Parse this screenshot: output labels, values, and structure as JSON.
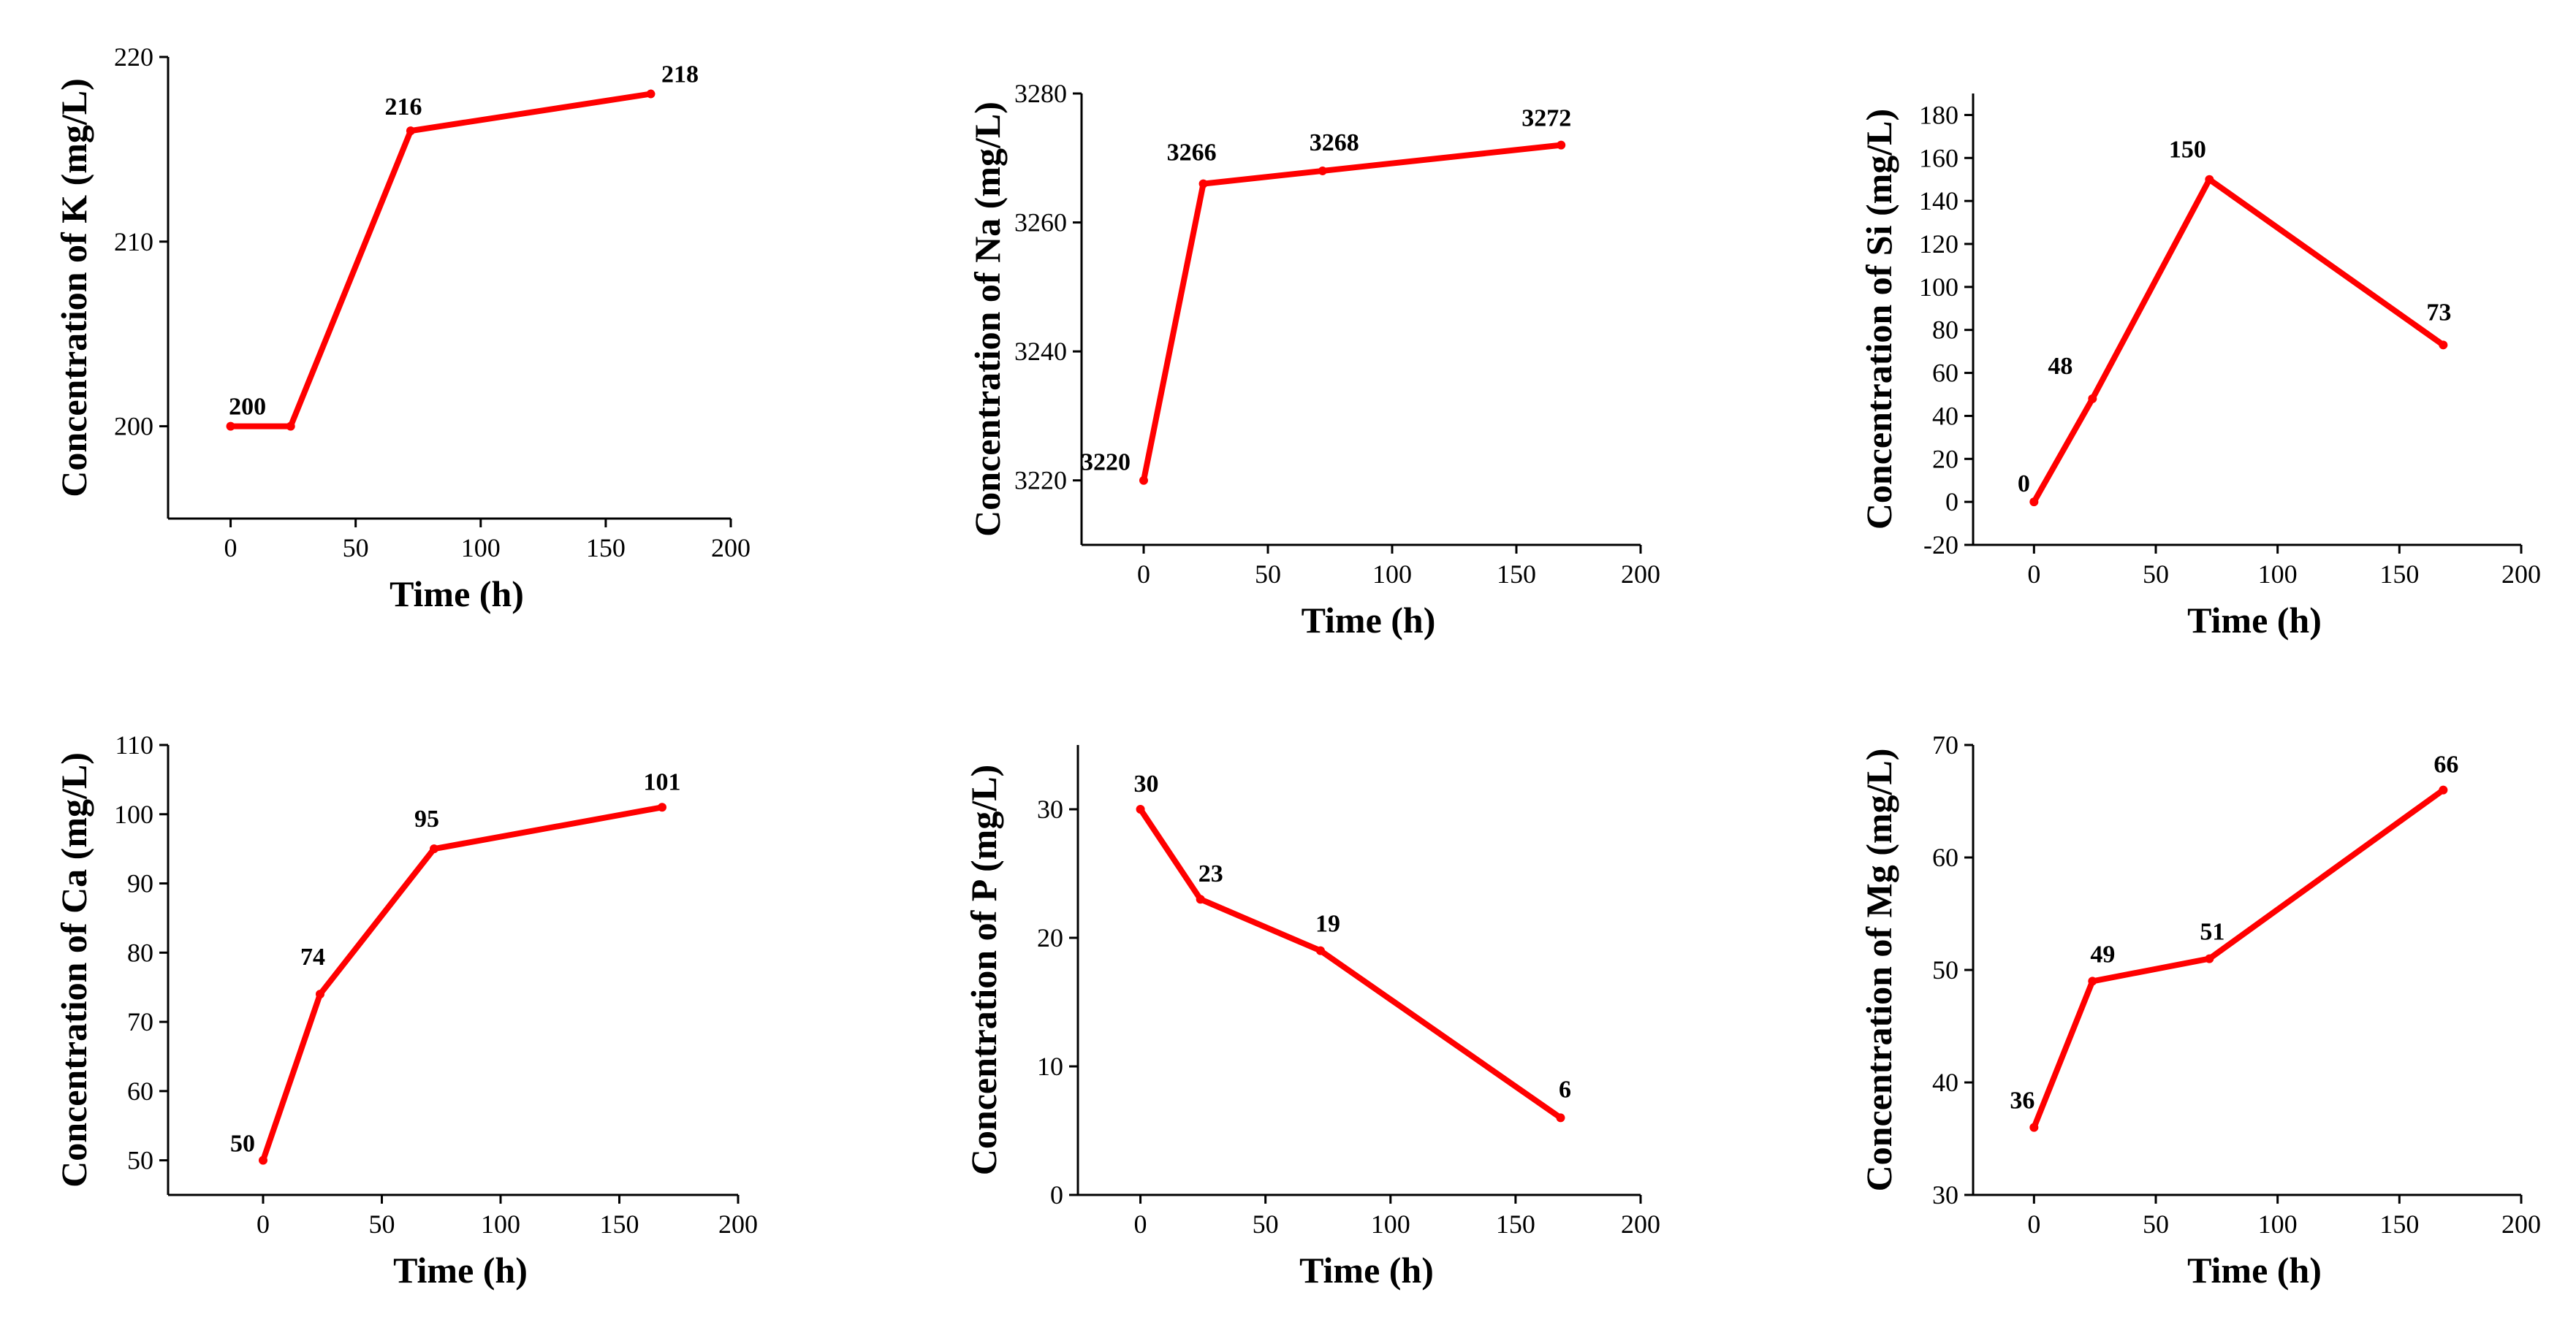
{
  "chart_data": [
    {
      "type": "line",
      "title": "",
      "xlabel": "Time (h)",
      "ylabel": "Concentration of K (mg/L)",
      "xlim": [
        -25,
        200
      ],
      "ylim": [
        195,
        220
      ],
      "xticks": [
        0,
        50,
        100,
        150,
        200
      ],
      "yticks": [
        200,
        210,
        220
      ],
      "series": [
        {
          "name": "K",
          "color": "#ff0000",
          "x": [
            0,
            24,
            72,
            168
          ],
          "values": [
            200,
            200,
            216,
            218
          ]
        }
      ],
      "annotations": [
        {
          "text": "200",
          "x": 12,
          "y": 200
        },
        {
          "text": "216",
          "x": 72,
          "y": 216
        },
        {
          "text": "218",
          "x": 168,
          "y": 218
        }
      ]
    },
    {
      "type": "line",
      "title": "",
      "xlabel": "Time (h)",
      "ylabel": "Concentration of Na (mg/L)",
      "xlim": [
        -25,
        200
      ],
      "ylim": [
        3210,
        3280
      ],
      "xticks": [
        0,
        50,
        100,
        150,
        200
      ],
      "yticks": [
        3220,
        3240,
        3260,
        3280
      ],
      "series": [
        {
          "name": "Na",
          "color": "#ff0000",
          "x": [
            0,
            24,
            72,
            168
          ],
          "values": [
            3220,
            3266,
            3268,
            3272
          ]
        }
      ],
      "annotations": [
        {
          "text": "3220",
          "x": 0,
          "y": 3220
        },
        {
          "text": "3266",
          "x": 24,
          "y": 3266
        },
        {
          "text": "3268",
          "x": 72,
          "y": 3268
        },
        {
          "text": "3272",
          "x": 168,
          "y": 3272
        }
      ]
    },
    {
      "type": "line",
      "title": "",
      "xlabel": "Time (h)",
      "ylabel": "Concentration of Si (mg/L)",
      "xlim": [
        -25,
        200
      ],
      "ylim": [
        -20,
        190
      ],
      "xticks": [
        0,
        50,
        100,
        150,
        200
      ],
      "yticks": [
        -20,
        0,
        20,
        40,
        60,
        80,
        100,
        120,
        140,
        160,
        180
      ],
      "series": [
        {
          "name": "Si",
          "color": "#ff0000",
          "x": [
            0,
            24,
            72,
            168
          ],
          "values": [
            0,
            48,
            150,
            73
          ]
        }
      ],
      "annotations": [
        {
          "text": "0",
          "x": 0,
          "y": 0
        },
        {
          "text": "48",
          "x": 24,
          "y": 48
        },
        {
          "text": "150",
          "x": 72,
          "y": 150
        },
        {
          "text": "73",
          "x": 168,
          "y": 73
        }
      ]
    },
    {
      "type": "line",
      "title": "",
      "xlabel": "Time (h)",
      "ylabel": "Concentration of Ca (mg/L)",
      "xlim": [
        -40,
        200
      ],
      "ylim": [
        45,
        110
      ],
      "xticks": [
        0,
        50,
        100,
        150,
        200
      ],
      "yticks": [
        50,
        60,
        70,
        80,
        90,
        100,
        110
      ],
      "series": [
        {
          "name": "Ca",
          "color": "#ff0000",
          "x": [
            0,
            24,
            72,
            168
          ],
          "values": [
            50,
            74,
            95,
            101
          ]
        }
      ],
      "annotations": [
        {
          "text": "50",
          "x": 0,
          "y": 50
        },
        {
          "text": "74",
          "x": 24,
          "y": 74
        },
        {
          "text": "95",
          "x": 72,
          "y": 95
        },
        {
          "text": "101",
          "x": 168,
          "y": 101
        }
      ]
    },
    {
      "type": "line",
      "title": "",
      "xlabel": "Time (h)",
      "ylabel": "Concentration of P (mg/L)",
      "xlim": [
        -25,
        200
      ],
      "ylim": [
        0,
        35
      ],
      "xticks": [
        0,
        50,
        100,
        150,
        200
      ],
      "yticks": [
        0,
        10,
        20,
        30
      ],
      "series": [
        {
          "name": "P",
          "color": "#ff0000",
          "x": [
            0,
            24,
            72,
            168
          ],
          "values": [
            30,
            23,
            19,
            6
          ]
        }
      ],
      "annotations": [
        {
          "text": "30",
          "x": 0,
          "y": 30
        },
        {
          "text": "23",
          "x": 24,
          "y": 23
        },
        {
          "text": "19",
          "x": 72,
          "y": 19
        },
        {
          "text": "6",
          "x": 168,
          "y": 6
        }
      ]
    },
    {
      "type": "line",
      "title": "",
      "xlabel": "Time (h)",
      "ylabel": "Concentration of Mg (mg/L)",
      "xlim": [
        -25,
        200
      ],
      "ylim": [
        30,
        70
      ],
      "xticks": [
        0,
        50,
        100,
        150,
        200
      ],
      "yticks": [
        30,
        40,
        50,
        60,
        70
      ],
      "series": [
        {
          "name": "Mg",
          "color": "#ff0000",
          "x": [
            0,
            24,
            72,
            168
          ],
          "values": [
            36,
            49,
            51,
            66
          ]
        }
      ],
      "annotations": [
        {
          "text": "36",
          "x": 0,
          "y": 36
        },
        {
          "text": "49",
          "x": 24,
          "y": 49
        },
        {
          "text": "51",
          "x": 72,
          "y": 51
        },
        {
          "text": "66",
          "x": 168,
          "y": 66
        }
      ]
    }
  ]
}
